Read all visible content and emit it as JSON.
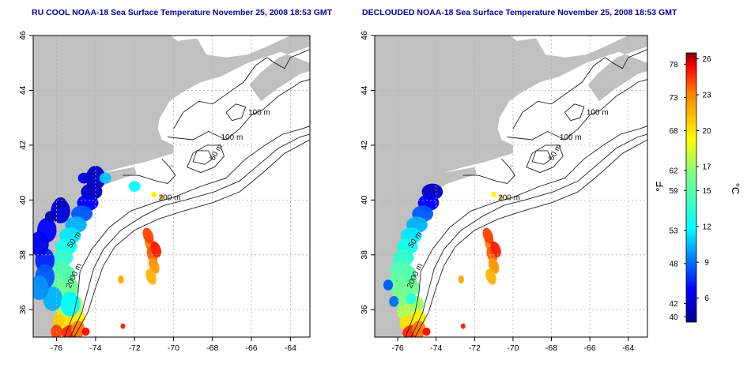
{
  "charts": [
    {
      "title": "RU COOL NOAA-18 Sea Surface Temperature November 25, 2008 18:53 GMT",
      "variant": "raw"
    },
    {
      "title": "DECLOUDED NOAA-18 Sea Surface Temperature November 25, 2008 18:53 GMT",
      "variant": "declouded"
    }
  ],
  "contour_labels": [
    "100 m",
    "100 m",
    "50 m",
    "200 m",
    "50 m",
    "2000 m"
  ],
  "colorbar": {
    "fahrenheit_label": "°F",
    "celsius_label": "°C",
    "fahrenheit_ticks": [
      "78",
      "73",
      "68",
      "62",
      "59",
      "53",
      "48",
      "42",
      "40"
    ],
    "celsius_ticks": [
      "26",
      "23",
      "20",
      "17",
      "15",
      "12",
      "9",
      "6"
    ]
  },
  "colors": {
    "land": "#c0c0c0",
    "ocean": "#ffffff",
    "title": "#0000a0",
    "grid": "#b0b0b0",
    "contour": "#222222"
  },
  "chart_data": [
    {
      "type": "heatmap",
      "title": "RU COOL NOAA-18 Sea Surface Temperature November 25, 2008 18:53 GMT",
      "x": [
        -76,
        -74,
        -72,
        -70,
        -68,
        -66,
        -64
      ],
      "y": [
        36,
        38,
        40,
        42,
        44,
        46
      ],
      "xlim": [
        -77.2,
        -63
      ],
      "ylim": [
        35,
        46
      ],
      "xtick_labels": [
        "-76",
        "-74",
        "-72",
        "-70",
        "-68",
        "-66",
        "-64"
      ],
      "ytick_labels": [
        "36",
        "38",
        "40",
        "42",
        "44",
        "46"
      ],
      "grid": true,
      "value_range_C": [
        4,
        26
      ],
      "value_range_F": [
        39,
        79
      ]
    },
    {
      "type": "heatmap",
      "title": "DECLOUDED NOAA-18 Sea Surface Temperature November 25, 2008 18:53 GMT",
      "x": [
        -76,
        -74,
        -72,
        -70,
        -68,
        -66,
        -64
      ],
      "y": [
        36,
        38,
        40,
        42,
        44,
        46
      ],
      "xlim": [
        -77.2,
        -63
      ],
      "ylim": [
        35,
        46
      ],
      "xtick_labels": [
        "-76",
        "-74",
        "-72",
        "-70",
        "-68",
        "-66",
        "-64"
      ],
      "ytick_labels": [
        "36",
        "38",
        "40",
        "42",
        "44",
        "46"
      ],
      "grid": true,
      "value_range_C": [
        4,
        26
      ],
      "value_range_F": [
        39,
        79
      ]
    }
  ]
}
